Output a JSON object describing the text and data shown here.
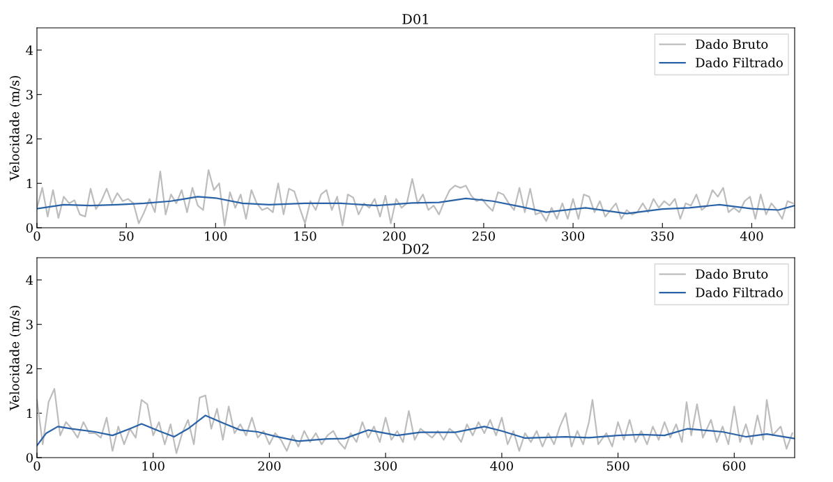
{
  "chart_data": [
    {
      "type": "line",
      "title": "D01",
      "ylabel": "Velocidade (m/s)",
      "xlim": [
        0,
        424
      ],
      "ylim": [
        0,
        4.5
      ],
      "xticks": [
        0,
        50,
        100,
        150,
        200,
        250,
        300,
        350,
        400
      ],
      "yticks": [
        0,
        1,
        2,
        3,
        4
      ],
      "legend": "top right",
      "grid": false,
      "series": [
        {
          "name": "Dado Bruto",
          "color": "#bdbdbd",
          "x": [
            0,
            3,
            6,
            9,
            12,
            15,
            18,
            21,
            24,
            27,
            30,
            33,
            36,
            39,
            42,
            45,
            48,
            51,
            54,
            57,
            60,
            63,
            66,
            69,
            72,
            75,
            78,
            81,
            84,
            87,
            90,
            93,
            96,
            99,
            102,
            105,
            108,
            111,
            114,
            117,
            120,
            123,
            126,
            129,
            132,
            135,
            138,
            141,
            144,
            147,
            150,
            153,
            156,
            159,
            162,
            165,
            168,
            171,
            174,
            177,
            180,
            183,
            186,
            189,
            192,
            195,
            198,
            201,
            204,
            207,
            210,
            213,
            216,
            219,
            222,
            225,
            228,
            231,
            234,
            237,
            240,
            243,
            246,
            249,
            252,
            255,
            258,
            261,
            264,
            267,
            270,
            273,
            276,
            279,
            282,
            285,
            288,
            291,
            294,
            297,
            300,
            303,
            306,
            309,
            312,
            315,
            318,
            321,
            324,
            327,
            330,
            333,
            336,
            339,
            342,
            345,
            348,
            351,
            354,
            357,
            360,
            363,
            366,
            369,
            372,
            375,
            378,
            381,
            384,
            387,
            390,
            393,
            396,
            399,
            402,
            405,
            408,
            411,
            414,
            417,
            420,
            423
          ],
          "values": [
            0.45,
            0.9,
            0.25,
            0.85,
            0.22,
            0.7,
            0.55,
            0.62,
            0.3,
            0.25,
            0.88,
            0.42,
            0.6,
            0.88,
            0.55,
            0.78,
            0.6,
            0.65,
            0.55,
            0.1,
            0.35,
            0.65,
            0.35,
            1.27,
            0.3,
            0.75,
            0.55,
            0.85,
            0.35,
            0.9,
            0.5,
            0.4,
            1.3,
            0.85,
            1.0,
            0.05,
            0.8,
            0.45,
            0.75,
            0.2,
            0.85,
            0.55,
            0.4,
            0.45,
            0.35,
            1.0,
            0.3,
            0.88,
            0.82,
            0.45,
            0.1,
            0.6,
            0.4,
            0.75,
            0.85,
            0.4,
            0.7,
            0.05,
            0.75,
            0.68,
            0.3,
            0.55,
            0.45,
            0.65,
            0.25,
            0.72,
            0.1,
            0.65,
            0.45,
            0.55,
            1.1,
            0.55,
            0.75,
            0.4,
            0.5,
            0.3,
            0.6,
            0.85,
            0.95,
            0.9,
            0.95,
            0.72,
            0.6,
            0.65,
            0.5,
            0.38,
            0.8,
            0.75,
            0.55,
            0.4,
            0.9,
            0.35,
            0.88,
            0.3,
            0.35,
            0.15,
            0.45,
            0.2,
            0.55,
            0.2,
            0.65,
            0.2,
            0.75,
            0.7,
            0.35,
            0.6,
            0.25,
            0.4,
            0.55,
            0.2,
            0.4,
            0.3,
            0.35,
            0.55,
            0.35,
            0.65,
            0.45,
            0.6,
            0.5,
            0.65,
            0.2,
            0.55,
            0.5,
            0.75,
            0.4,
            0.5,
            0.85,
            0.7,
            0.9,
            0.35,
            0.45,
            0.35,
            0.6,
            0.7,
            0.2,
            0.75,
            0.3,
            0.55,
            0.4,
            0.2,
            0.6,
            0.55
          ]
        },
        {
          "name": "Dado Filtrado",
          "color": "#2a62a8",
          "x": [
            0,
            15,
            30,
            45,
            60,
            75,
            90,
            100,
            115,
            130,
            150,
            170,
            190,
            210,
            225,
            240,
            255,
            270,
            285,
            307,
            330,
            350,
            365,
            382,
            400,
            415,
            424
          ],
          "values": [
            0.43,
            0.52,
            0.5,
            0.52,
            0.55,
            0.6,
            0.7,
            0.67,
            0.55,
            0.52,
            0.55,
            0.55,
            0.5,
            0.56,
            0.57,
            0.66,
            0.6,
            0.48,
            0.35,
            0.45,
            0.32,
            0.42,
            0.45,
            0.52,
            0.43,
            0.4,
            0.5
          ]
        }
      ]
    },
    {
      "type": "line",
      "title": "D02",
      "ylabel": "Velocidade (m/s)",
      "xlim": [
        0,
        652
      ],
      "ylim": [
        0,
        4.5
      ],
      "xticks": [
        0,
        100,
        200,
        300,
        400,
        500,
        600
      ],
      "yticks": [
        0,
        1,
        2,
        3,
        4
      ],
      "legend": "top right",
      "grid": false,
      "series": [
        {
          "name": "Dado Bruto",
          "color": "#bdbdbd",
          "x": [
            0,
            5,
            10,
            15,
            20,
            25,
            30,
            35,
            40,
            45,
            50,
            55,
            60,
            65,
            70,
            75,
            80,
            85,
            90,
            95,
            100,
            105,
            110,
            115,
            120,
            125,
            130,
            135,
            140,
            145,
            150,
            155,
            160,
            165,
            170,
            175,
            180,
            185,
            190,
            195,
            200,
            205,
            210,
            215,
            220,
            225,
            230,
            235,
            240,
            245,
            250,
            255,
            260,
            265,
            270,
            275,
            280,
            285,
            290,
            295,
            300,
            305,
            310,
            315,
            320,
            325,
            330,
            335,
            340,
            345,
            350,
            355,
            360,
            365,
            370,
            375,
            380,
            385,
            390,
            395,
            400,
            405,
            410,
            415,
            420,
            425,
            430,
            435,
            440,
            445,
            450,
            455,
            460,
            465,
            470,
            475,
            478,
            483,
            490,
            495,
            500,
            505,
            510,
            515,
            520,
            525,
            530,
            535,
            540,
            545,
            550,
            555,
            559,
            563,
            568,
            573,
            580,
            585,
            590,
            595,
            600,
            605,
            610,
            615,
            620,
            625,
            628,
            633,
            640,
            645,
            650
          ],
          "values": [
            1.3,
            0.3,
            1.25,
            1.55,
            0.5,
            0.8,
            0.65,
            0.45,
            0.8,
            0.55,
            0.55,
            0.45,
            0.9,
            0.15,
            0.7,
            0.3,
            0.65,
            0.45,
            1.3,
            1.2,
            0.5,
            0.8,
            0.3,
            0.75,
            0.1,
            0.55,
            0.85,
            0.3,
            1.35,
            1.4,
            0.65,
            1.1,
            0.4,
            1.15,
            0.55,
            0.75,
            0.5,
            0.9,
            0.45,
            0.6,
            0.3,
            0.55,
            0.4,
            0.15,
            0.5,
            0.25,
            0.6,
            0.35,
            0.55,
            0.3,
            0.5,
            0.6,
            0.35,
            0.2,
            0.55,
            0.35,
            0.8,
            0.45,
            0.7,
            0.35,
            0.9,
            0.4,
            0.6,
            0.35,
            1.05,
            0.4,
            0.65,
            0.55,
            0.45,
            0.6,
            0.4,
            0.65,
            0.55,
            0.35,
            0.75,
            0.5,
            0.8,
            0.55,
            0.85,
            0.5,
            0.9,
            0.3,
            0.6,
            0.15,
            0.55,
            0.35,
            0.6,
            0.25,
            0.55,
            0.3,
            0.7,
            1.0,
            0.25,
            0.6,
            0.3,
            0.8,
            1.3,
            0.3,
            0.55,
            0.25,
            0.8,
            0.4,
            0.85,
            0.35,
            0.6,
            0.3,
            0.7,
            0.4,
            0.8,
            0.45,
            0.75,
            0.35,
            1.25,
            0.5,
            1.2,
            0.45,
            0.85,
            0.35,
            0.7,
            0.3,
            1.15,
            0.35,
            0.75,
            0.3,
            0.95,
            0.4,
            1.3,
            0.5,
            0.7,
            0.2,
            0.55
          ]
        },
        {
          "name": "Dado Filtrado",
          "color": "#2a62a8",
          "x": [
            0,
            8,
            18,
            30,
            50,
            65,
            80,
            90,
            105,
            118,
            130,
            145,
            160,
            175,
            190,
            205,
            225,
            250,
            265,
            285,
            310,
            330,
            360,
            385,
            400,
            420,
            455,
            475,
            500,
            520,
            540,
            560,
            590,
            610,
            628,
            652
          ],
          "values": [
            0.27,
            0.55,
            0.7,
            0.65,
            0.58,
            0.5,
            0.65,
            0.76,
            0.6,
            0.47,
            0.65,
            0.95,
            0.78,
            0.62,
            0.58,
            0.48,
            0.37,
            0.42,
            0.43,
            0.62,
            0.5,
            0.57,
            0.57,
            0.7,
            0.6,
            0.44,
            0.47,
            0.45,
            0.5,
            0.52,
            0.5,
            0.65,
            0.58,
            0.47,
            0.53,
            0.43
          ]
        }
      ]
    }
  ]
}
